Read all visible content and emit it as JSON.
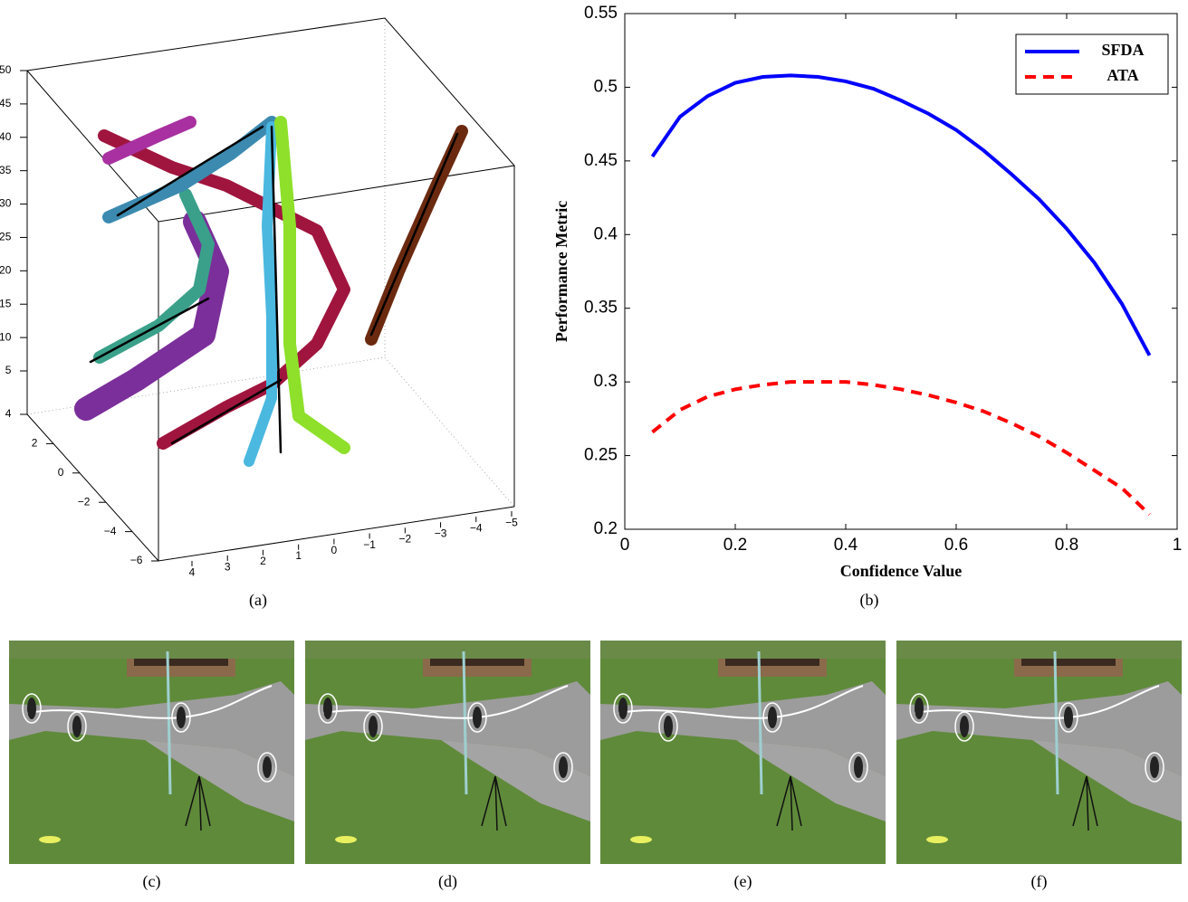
{
  "chart_data": [
    {
      "type": "scatter3d",
      "caption": "(a)",
      "xticks": [
        4,
        3,
        2,
        1,
        0,
        {
          "value": -1,
          "label": "−1"
        },
        {
          "value": -2,
          "label": "−2"
        },
        {
          "value": -3,
          "label": "−3"
        },
        {
          "value": -4,
          "label": "−4"
        },
        {
          "value": -5,
          "label": "−5"
        }
      ],
      "yticks": [
        4,
        2,
        0,
        {
          "value": -2,
          "label": "−2"
        },
        {
          "value": -4,
          "label": "−4"
        },
        {
          "value": -6,
          "label": "−6"
        }
      ],
      "zticks": [
        5,
        10,
        15,
        20,
        25,
        30,
        35,
        40,
        45,
        50
      ]
    },
    {
      "type": "line",
      "caption": "(b)",
      "xlabel": "Confidence Value",
      "ylabel": "Performance Metric",
      "xlim": [
        0,
        1
      ],
      "ylim": [
        0.2,
        0.55
      ],
      "xticks": [
        0,
        0.2,
        0.4,
        0.6,
        0.8,
        1
      ],
      "yticks": [
        0.2,
        0.25,
        0.3,
        0.35,
        0.4,
        0.45,
        0.5,
        0.55
      ],
      "legend": "upper right",
      "x": [
        0.05,
        0.1,
        0.15,
        0.2,
        0.25,
        0.3,
        0.35,
        0.4,
        0.45,
        0.5,
        0.55,
        0.6,
        0.65,
        0.7,
        0.75,
        0.8,
        0.85,
        0.9,
        0.95
      ],
      "series": [
        {
          "name": "SFDA",
          "color": "#0000ff",
          "dash": "solid",
          "values": [
            0.453,
            0.48,
            0.494,
            0.503,
            0.507,
            0.508,
            0.507,
            0.504,
            0.499,
            0.491,
            0.482,
            0.471,
            0.457,
            0.441,
            0.424,
            0.404,
            0.381,
            0.353,
            0.318
          ]
        },
        {
          "name": "ATA",
          "color": "#ff0000",
          "dash": "dashed",
          "values": [
            0.266,
            0.281,
            0.29,
            0.295,
            0.298,
            0.3,
            0.3,
            0.3,
            0.298,
            0.295,
            0.291,
            0.286,
            0.28,
            0.272,
            0.263,
            0.252,
            0.24,
            0.228,
            0.21
          ]
        }
      ]
    }
  ],
  "images": [
    {
      "caption": "(c)"
    },
    {
      "caption": "(d)"
    },
    {
      "caption": "(e)"
    },
    {
      "caption": "(f)"
    }
  ]
}
